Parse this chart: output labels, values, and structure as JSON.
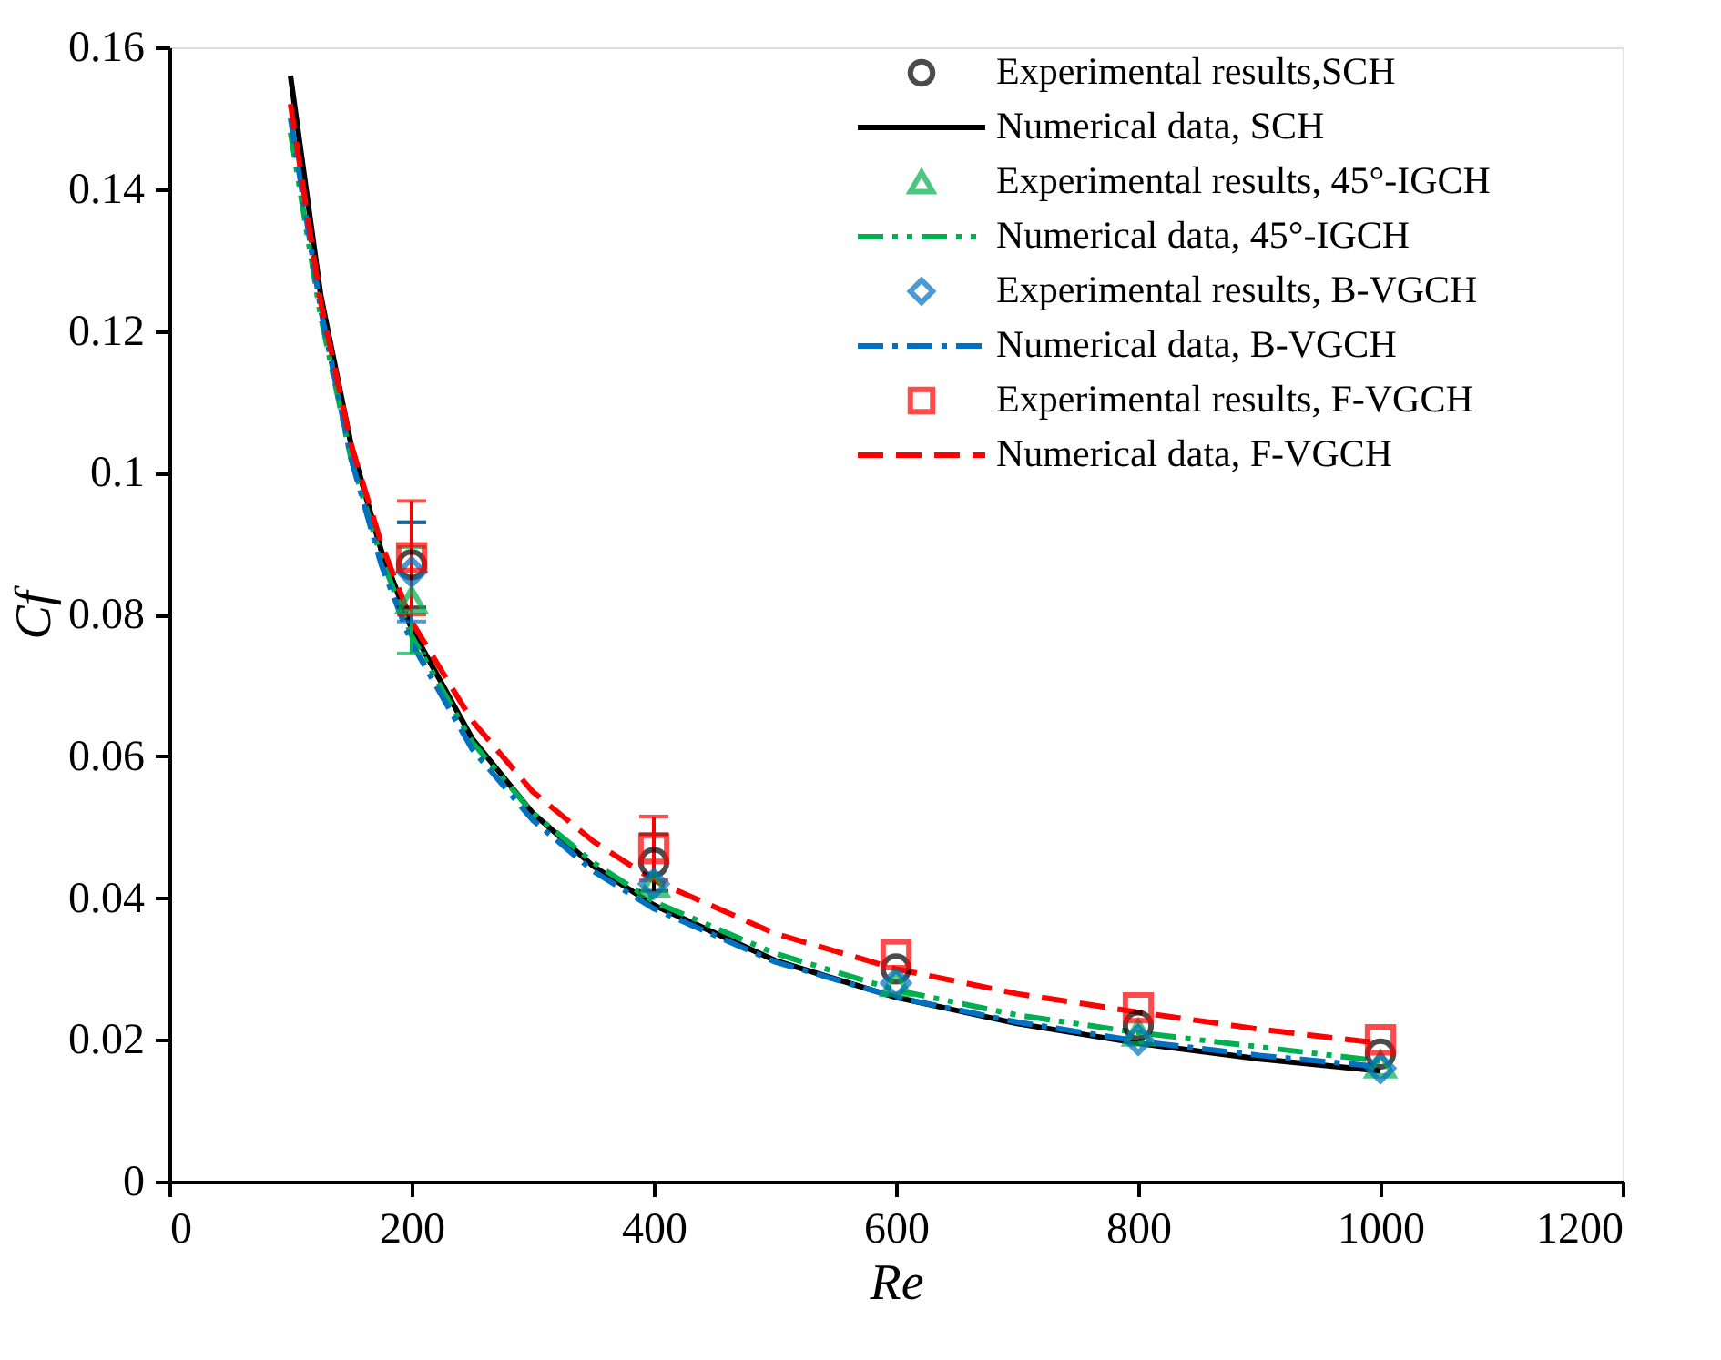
{
  "chart_data": {
    "type": "line",
    "xlabel": "Re",
    "ylabel": "Cf",
    "xlim": [
      0,
      1200
    ],
    "xticks": [
      0,
      200,
      400,
      600,
      800,
      1000,
      1200
    ],
    "ylim": [
      0,
      0.16
    ],
    "yticks": [
      0,
      0.02,
      0.04,
      0.06,
      0.08,
      0.1,
      0.12,
      0.14,
      0.16
    ],
    "grid": false,
    "legend": "top right",
    "series": [
      {
        "name": "Experimental results,SCH",
        "type": "scatter",
        "marker": "circle",
        "color": "#000000",
        "x": [
          200,
          400,
          600,
          800,
          1000
        ],
        "values": [
          0.087,
          0.045,
          0.03,
          0.022,
          0.018
        ],
        "errors": [
          0.006,
          0.004,
          null,
          null,
          null
        ]
      },
      {
        "name": "Numerical data, SCH",
        "line_style": "solid",
        "color": "#000000",
        "x": [
          100,
          125,
          150,
          175,
          200,
          250,
          300,
          350,
          400,
          500,
          600,
          700,
          800,
          900,
          1000
        ],
        "values": [
          0.156,
          0.125,
          0.104,
          0.089,
          0.078,
          0.0625,
          0.052,
          0.0445,
          0.039,
          0.0312,
          0.026,
          0.0223,
          0.0195,
          0.0173,
          0.0156
        ]
      },
      {
        "name": "Experimental results, 45°-IGCH",
        "type": "scatter",
        "marker": "triangle",
        "color": "#00b050",
        "x": [
          200,
          400,
          600,
          800,
          1000
        ],
        "values": [
          0.082,
          0.042,
          0.028,
          0.021,
          0.0165
        ],
        "errors": [
          0.0075,
          null,
          null,
          null,
          null
        ]
      },
      {
        "name": "Numerical data, 45°-IGCH",
        "line_style": "dashdotdot",
        "color": "#00b050",
        "x": [
          100,
          125,
          150,
          175,
          200,
          250,
          300,
          350,
          400,
          500,
          600,
          700,
          800,
          900,
          1000
        ],
        "values": [
          0.148,
          0.122,
          0.102,
          0.088,
          0.077,
          0.062,
          0.052,
          0.045,
          0.0395,
          0.0322,
          0.027,
          0.0235,
          0.021,
          0.019,
          0.017
        ]
      },
      {
        "name": "Experimental results, B-VGCH",
        "type": "scatter",
        "marker": "diamond",
        "color": "#0070c0",
        "x": [
          200,
          400,
          600,
          800,
          1000
        ],
        "values": [
          0.086,
          0.042,
          0.028,
          0.02,
          0.016
        ],
        "errors": [
          0.007,
          null,
          null,
          null,
          null
        ]
      },
      {
        "name": "Numerical data, B-VGCH",
        "line_style": "dashdot",
        "color": "#0070c0",
        "x": [
          100,
          125,
          150,
          175,
          200,
          250,
          300,
          350,
          400,
          500,
          600,
          700,
          800,
          900,
          1000
        ],
        "values": [
          0.15,
          0.123,
          0.102,
          0.087,
          0.076,
          0.061,
          0.051,
          0.0438,
          0.0385,
          0.031,
          0.026,
          0.0225,
          0.0198,
          0.0178,
          0.0162
        ]
      },
      {
        "name": "Experimental results, F-VGCH",
        "type": "scatter",
        "marker": "square",
        "color": "#ff0000",
        "x": [
          200,
          400,
          600,
          800,
          1000
        ],
        "values": [
          0.088,
          0.047,
          0.032,
          0.0245,
          0.02
        ],
        "errors": [
          0.008,
          0.0045,
          null,
          null,
          null
        ]
      },
      {
        "name": "Numerical data, F-VGCH",
        "line_style": "dashed",
        "color": "#ff0000",
        "x": [
          100,
          125,
          150,
          175,
          200,
          250,
          300,
          350,
          400,
          500,
          600,
          700,
          800,
          900,
          1000
        ],
        "values": [
          0.152,
          0.124,
          0.104,
          0.09,
          0.079,
          0.065,
          0.055,
          0.048,
          0.0425,
          0.035,
          0.03,
          0.0265,
          0.0239,
          0.0215,
          0.0195
        ]
      }
    ]
  }
}
